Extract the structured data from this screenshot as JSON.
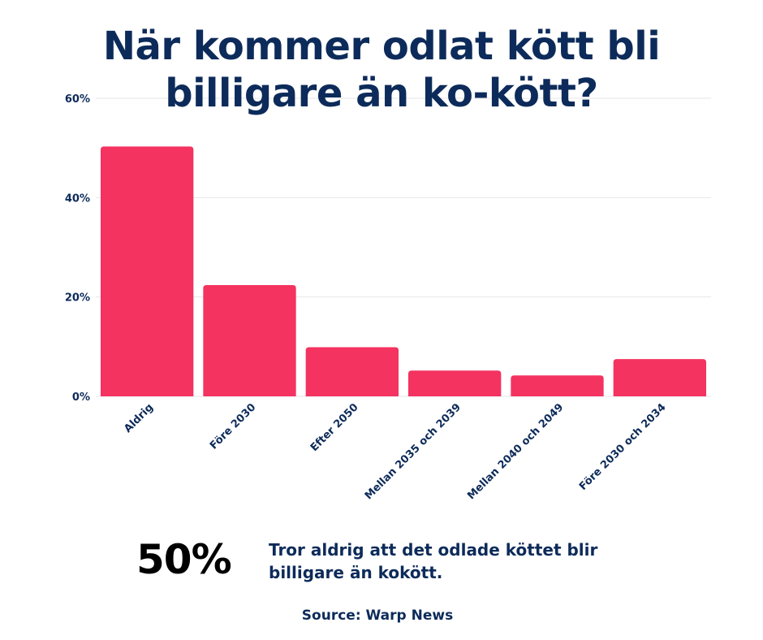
{
  "title_lines": [
    "När kommer odlat kött bli",
    "billigare än ko-kött?"
  ],
  "chart_data": {
    "type": "bar",
    "title": "När kommer odlat kött bli billigare än ko-kött?",
    "categories": [
      "Aldrig",
      "Före 2030",
      "Efter 2050",
      "Mellan 2035 och 2039",
      "Mellan 2040 och 2049",
      "Före 2030 och 2034"
    ],
    "values": [
      50.3,
      22.4,
      9.9,
      5.2,
      4.2,
      7.5
    ],
    "unit": "%",
    "ylim": [
      0,
      60
    ],
    "yticks": [
      0,
      20,
      40,
      60
    ],
    "ytick_labels": [
      "0%",
      "20%",
      "40%",
      "60%"
    ],
    "xlabel": "",
    "ylabel": "",
    "grid": true,
    "bar_color": "#f43360"
  },
  "highlight": {
    "value": "50%",
    "text_lines": [
      "Tror aldrig att det odlade köttet blir",
      "billigare än kokött."
    ]
  },
  "source": "Source: Warp News",
  "colors": {
    "navy": "#0d2b5a",
    "grid": "#e6e6e6",
    "bar": "#f43360"
  }
}
